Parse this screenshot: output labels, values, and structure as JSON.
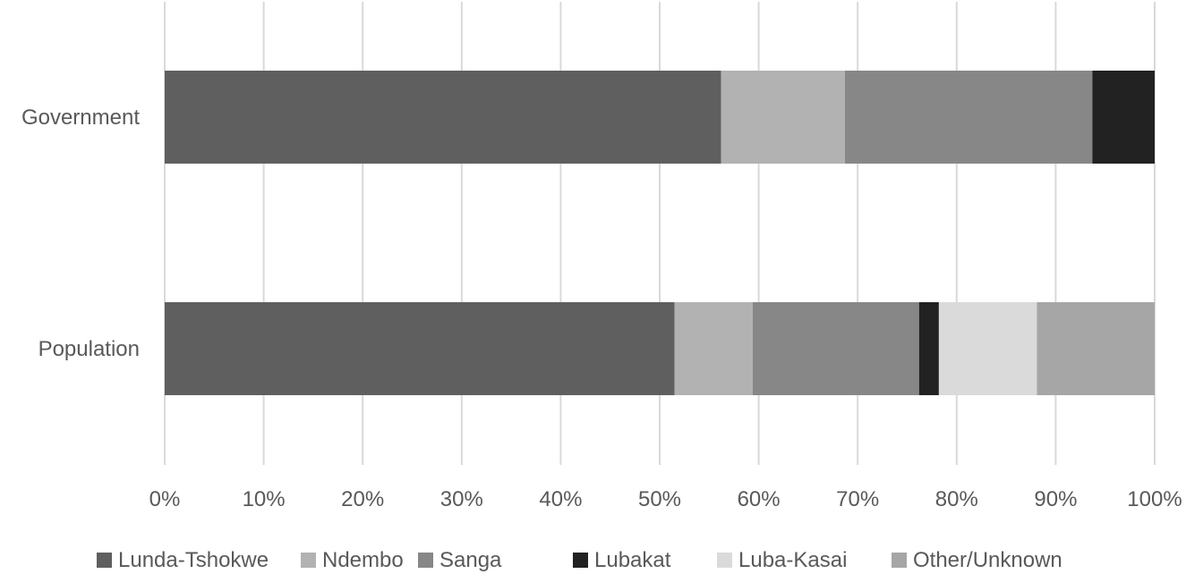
{
  "chart_data": {
    "type": "bar",
    "orientation": "horizontal",
    "stacked": "percent",
    "title": "",
    "xlabel": "",
    "ylabel": "",
    "categories": [
      "Government",
      "Population"
    ],
    "xlim": [
      0,
      100
    ],
    "x_ticks": [
      "0%",
      "10%",
      "20%",
      "30%",
      "40%",
      "50%",
      "60%",
      "70%",
      "80%",
      "90%",
      "100%"
    ],
    "grid": "vertical",
    "legend_position": "bottom",
    "series": [
      {
        "name": "Lunda-Tshokwe",
        "color": "#5f5f5f",
        "values": [
          56.2,
          51.5
        ]
      },
      {
        "name": "Ndembo",
        "color": "#b2b2b2",
        "values": [
          12.5,
          7.9
        ]
      },
      {
        "name": "Sanga",
        "color": "#878787",
        "values": [
          25.0,
          16.8
        ]
      },
      {
        "name": "Lubakat",
        "color": "#222222",
        "values": [
          6.3,
          2.0
        ]
      },
      {
        "name": "Luba-Kasai",
        "color": "#dadada",
        "values": [
          0,
          9.9
        ]
      },
      {
        "name": "Other/Unknown",
        "color": "#a6a6a6",
        "values": [
          0,
          11.9
        ]
      }
    ]
  }
}
